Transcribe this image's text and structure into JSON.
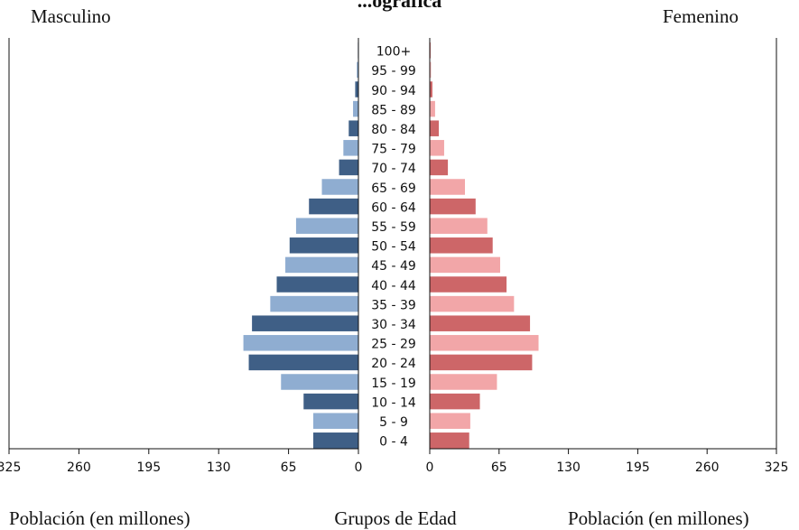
{
  "chart_data": {
    "type": "bar",
    "title": "...ográfica",
    "legend": {
      "male": "Masculino",
      "female": "Femenino"
    },
    "axis_labels": {
      "left_x": "Población (en millones)",
      "center": "Grupos de Edad",
      "right_x": "Población (en millones)"
    },
    "xlim": [
      0,
      325
    ],
    "ticks": [
      "325",
      "260",
      "195",
      "130",
      "65",
      "0"
    ],
    "tick_values": [
      325,
      260,
      195,
      130,
      65,
      0
    ],
    "tick_values_right": [
      0,
      65,
      130,
      195,
      260,
      325
    ],
    "categories": [
      "100+",
      "95 - 99",
      "90 - 94",
      "85 - 89",
      "80 - 84",
      "75 - 79",
      "70 - 74",
      "65 - 69",
      "60 - 64",
      "55 - 59",
      "50 - 54",
      "45 - 49",
      "40 - 44",
      "35 - 39",
      "30 - 34",
      "25 - 29",
      "20 - 24",
      "15 - 19",
      "10 - 14",
      "5 - 9",
      "0 - 4"
    ],
    "series": [
      {
        "name": "Masculino",
        "side": "left",
        "values": [
          0.5,
          1.5,
          3,
          5,
          9,
          14,
          18,
          34,
          46,
          58,
          64,
          68,
          76,
          82,
          99,
          107,
          102,
          72,
          51,
          42,
          42
        ]
      },
      {
        "name": "Femenino",
        "side": "right",
        "values": [
          0.8,
          1.2,
          2.5,
          5,
          8.5,
          13.5,
          17,
          33,
          43,
          54,
          59,
          66,
          72,
          79,
          94,
          102,
          96,
          63,
          47,
          38,
          37
        ]
      }
    ],
    "colors": {
      "male_dark": "#3f5f86",
      "male_light": "#8fadd1",
      "female_dark": "#cd6668",
      "female_light": "#f2a6a8"
    }
  }
}
